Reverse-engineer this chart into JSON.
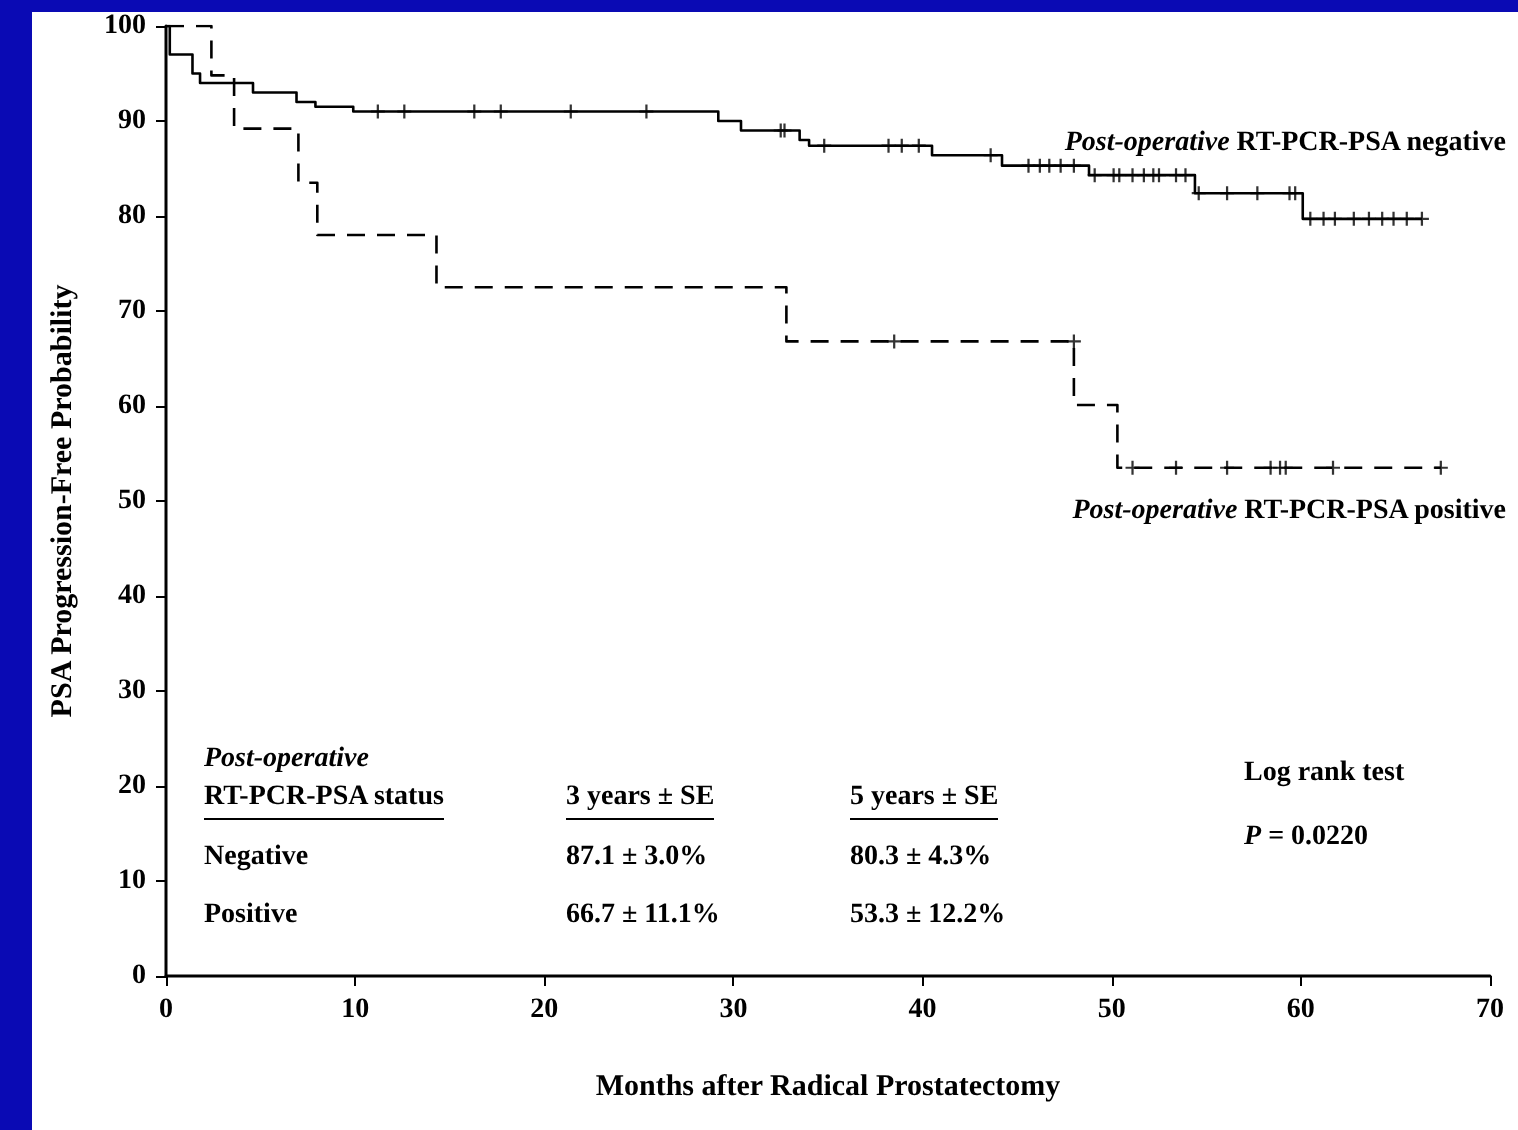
{
  "chart_data": {
    "type": "step",
    "xlabel": "Months after Radical Prostatectomy",
    "ylabel": "PSA Progression-Free Probability",
    "xlim": [
      0,
      70
    ],
    "xticks": [
      0,
      10,
      20,
      30,
      40,
      50,
      60,
      70
    ],
    "ylim": [
      0,
      100
    ],
    "yticks": [
      0,
      10,
      20,
      30,
      40,
      50,
      60,
      70,
      80,
      90,
      100
    ],
    "grid": false,
    "legend": false,
    "series": [
      {
        "name": "Post-operative RT-PCR-PSA negative",
        "color": "#000000",
        "line_style": "solid",
        "marker": "none",
        "x": [
          0,
          0.2,
          1.4,
          1.8,
          4.6,
          6.9,
          7.9,
          9.9,
          29.2,
          30.4,
          33.5,
          34,
          40.5,
          44.2,
          48.8,
          54.4,
          60.1,
          66.4
        ],
        "values": [
          100,
          97,
          95,
          94,
          93,
          92,
          91.5,
          91,
          90,
          89,
          88,
          87.4,
          86.4,
          85.3,
          84.3,
          82.4,
          79.7,
          79.7
        ]
      },
      {
        "name": "Post-operative RT-PCR-PSA positive",
        "color": "#000000",
        "line_style": "dashed",
        "marker": "none",
        "x": [
          0,
          2.4,
          3.6,
          7.0,
          8.0,
          14.3,
          32.8,
          48.0,
          50.3,
          67.4
        ],
        "values": [
          100,
          94.8,
          89.2,
          83.5,
          78,
          72.5,
          66.8,
          60.1,
          53.5,
          53.5
        ]
      },
      {
        "type": "scatter",
        "color": "#000000",
        "marker": "cross",
        "x": [
          11.2,
          12.6,
          16.3,
          17.7,
          21.4,
          25.4,
          32.5,
          32.7,
          34.8,
          38.2,
          38.9,
          39.8,
          43.6,
          45.6,
          46.2,
          46.7,
          47.3,
          48.0,
          49.1,
          50.1,
          50.4,
          51.1,
          51.7,
          52.2,
          52.5,
          53.4,
          53.9,
          54.6,
          56.1,
          57.7,
          59.4,
          59.7,
          60.5,
          61.2,
          61.8,
          62.8,
          63.6,
          64.3,
          64.9,
          65.6,
          66.4
        ],
        "values": [
          91,
          91,
          91,
          91,
          91,
          91,
          89,
          89,
          87.4,
          87.4,
          87.4,
          87.4,
          86.4,
          85.3,
          85.3,
          85.3,
          85.3,
          85.3,
          84.3,
          84.3,
          84.3,
          84.3,
          84.3,
          84.3,
          84.3,
          84.3,
          84.3,
          82.4,
          82.4,
          82.4,
          82.4,
          82.4,
          79.7,
          79.7,
          79.7,
          79.7,
          79.7,
          79.7,
          79.7,
          79.7,
          79.7
        ]
      },
      {
        "type": "scatter",
        "color": "#000000",
        "marker": "cross",
        "x": [
          38.5,
          48.0,
          51.1,
          53.4,
          56.1,
          58.4,
          58.9,
          59.2,
          61.7,
          67.4
        ],
        "values": [
          66.8,
          66.8,
          53.5,
          53.5,
          53.5,
          53.5,
          53.5,
          53.5,
          53.5,
          53.5
        ]
      }
    ],
    "annotations": [
      "Post-operative",
      "RT-PCR-PSA status",
      "3 years ± SE",
      "5 years ± SE",
      "Negative",
      "87.1 ± 3.0%",
      "80.3 ± 4.3%",
      "Positive",
      "66.7 ± 11.1%",
      "53.3 ± 12.2%",
      "Log rank test",
      "P = 0.0220"
    ]
  }
}
